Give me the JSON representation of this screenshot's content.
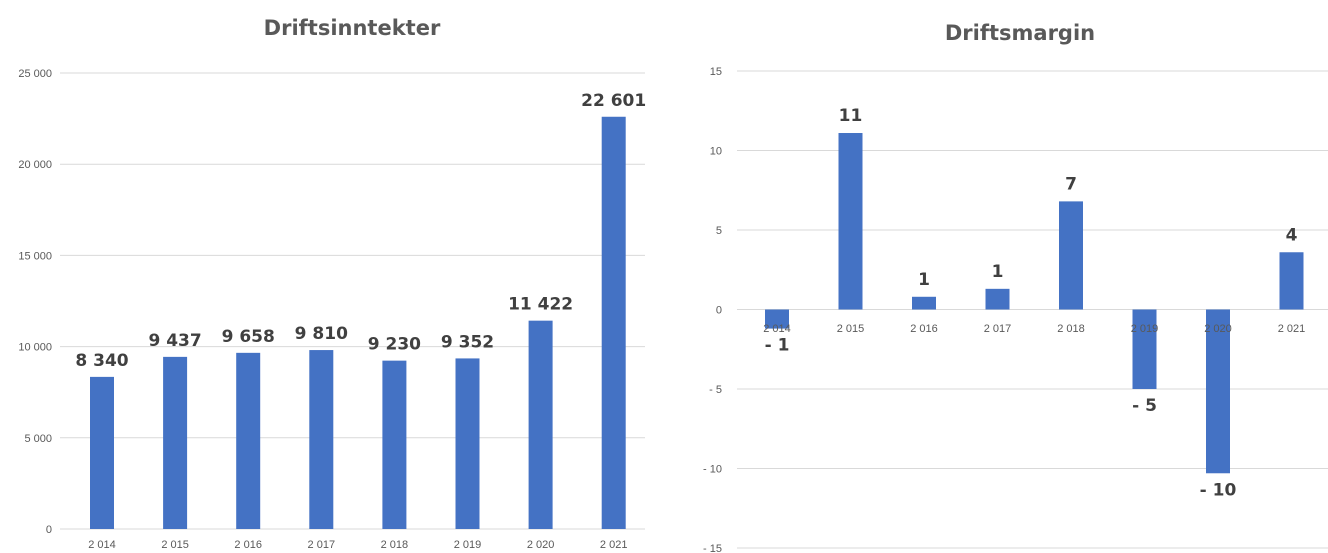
{
  "chart_data": [
    {
      "type": "bar",
      "title": "Driftsinntekter",
      "categories": [
        "2 014",
        "2 015",
        "2 016",
        "2 017",
        "2 018",
        "2 019",
        "2 020",
        "2 021"
      ],
      "values": [
        8340,
        9437,
        9658,
        9810,
        9230,
        9352,
        11422,
        22601
      ],
      "data_labels": [
        "8 340",
        "9 437",
        "9 658",
        "9 810",
        "9 230",
        "9 352",
        "11 422",
        "22 601"
      ],
      "ylim": [
        0,
        25000
      ],
      "yticks": [
        0,
        5000,
        10000,
        15000,
        20000,
        25000
      ],
      "ytick_labels": [
        "0",
        "5 000",
        "10 000",
        "15 000",
        "20 000",
        "25 000"
      ],
      "grid": true,
      "bar_color": "#4472c4"
    },
    {
      "type": "bar",
      "title": "Driftsmargin",
      "categories": [
        "2 014",
        "2 015",
        "2 016",
        "2 017",
        "2 018",
        "2 019",
        "2 020",
        "2 021"
      ],
      "values": [
        -1.2,
        11.1,
        0.8,
        1.3,
        6.8,
        -5.0,
        -10.3,
        3.6
      ],
      "data_labels": [
        "- 1",
        "11",
        "1",
        "1",
        "7",
        "- 5",
        "- 10",
        "4"
      ],
      "ylim": [
        -15,
        15
      ],
      "yticks": [
        -15,
        -10,
        -5,
        0,
        5,
        10,
        15
      ],
      "ytick_labels": [
        "- 15",
        "- 10",
        "- 5",
        "0",
        "5",
        "10",
        "15"
      ],
      "grid": true,
      "bar_color": "#4472c4"
    }
  ]
}
